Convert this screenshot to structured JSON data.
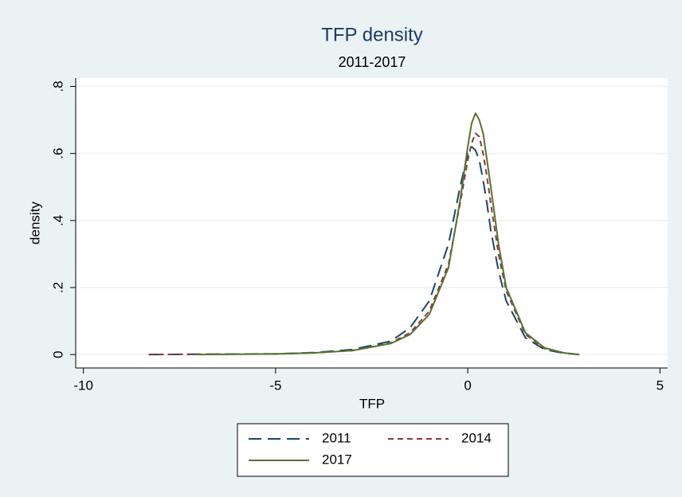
{
  "chart_data": {
    "type": "line",
    "title": "TFP density",
    "subtitle": "2011-2017",
    "x_label": "TFP",
    "y_label": "density",
    "x": [
      -8.3,
      -7,
      -5,
      -4,
      -3,
      -2,
      -1.5,
      -1,
      -0.5,
      -0.2,
      0,
      0.1,
      0.2,
      0.3,
      0.4,
      0.5,
      0.6,
      0.8,
      1,
      1.5,
      2,
      2.5,
      2.9
    ],
    "series": [
      {
        "name": "2011",
        "color": "#1a476f",
        "dash": "long",
        "values": [
          0,
          0.001,
          0.002,
          0.006,
          0.015,
          0.04,
          0.08,
          0.16,
          0.33,
          0.5,
          0.6,
          0.62,
          0.61,
          0.58,
          0.52,
          0.45,
          0.37,
          0.25,
          0.16,
          0.05,
          0.015,
          0.004,
          0
        ]
      },
      {
        "name": "2014",
        "color": "#90353b",
        "dash": "short",
        "values": [
          0,
          0.001,
          0.002,
          0.005,
          0.012,
          0.035,
          0.065,
          0.13,
          0.27,
          0.45,
          0.58,
          0.63,
          0.66,
          0.65,
          0.6,
          0.53,
          0.45,
          0.3,
          0.19,
          0.06,
          0.018,
          0.005,
          0
        ]
      },
      {
        "name": "2017",
        "color": "#55752f",
        "dash": "solid",
        "values": [
          null,
          0,
          0.002,
          0.005,
          0.012,
          0.033,
          0.06,
          0.12,
          0.26,
          0.46,
          0.62,
          0.69,
          0.72,
          0.7,
          0.66,
          0.58,
          0.5,
          0.33,
          0.2,
          0.065,
          0.02,
          0.005,
          0
        ]
      }
    ],
    "xlim": [
      -10.2,
      5.2
    ],
    "xticks": [
      -10,
      -5,
      0,
      5
    ],
    "ylim": [
      -0.04,
      0.825
    ],
    "yticks": [
      0,
      {
        "value": 0.2,
        "label": ".2"
      },
      {
        "value": 0.4,
        "label": ".4"
      },
      {
        "value": 0.6,
        "label": ".6"
      },
      {
        "value": 0.8,
        "label": ".8"
      }
    ],
    "grid": true,
    "legend": "bottom"
  }
}
